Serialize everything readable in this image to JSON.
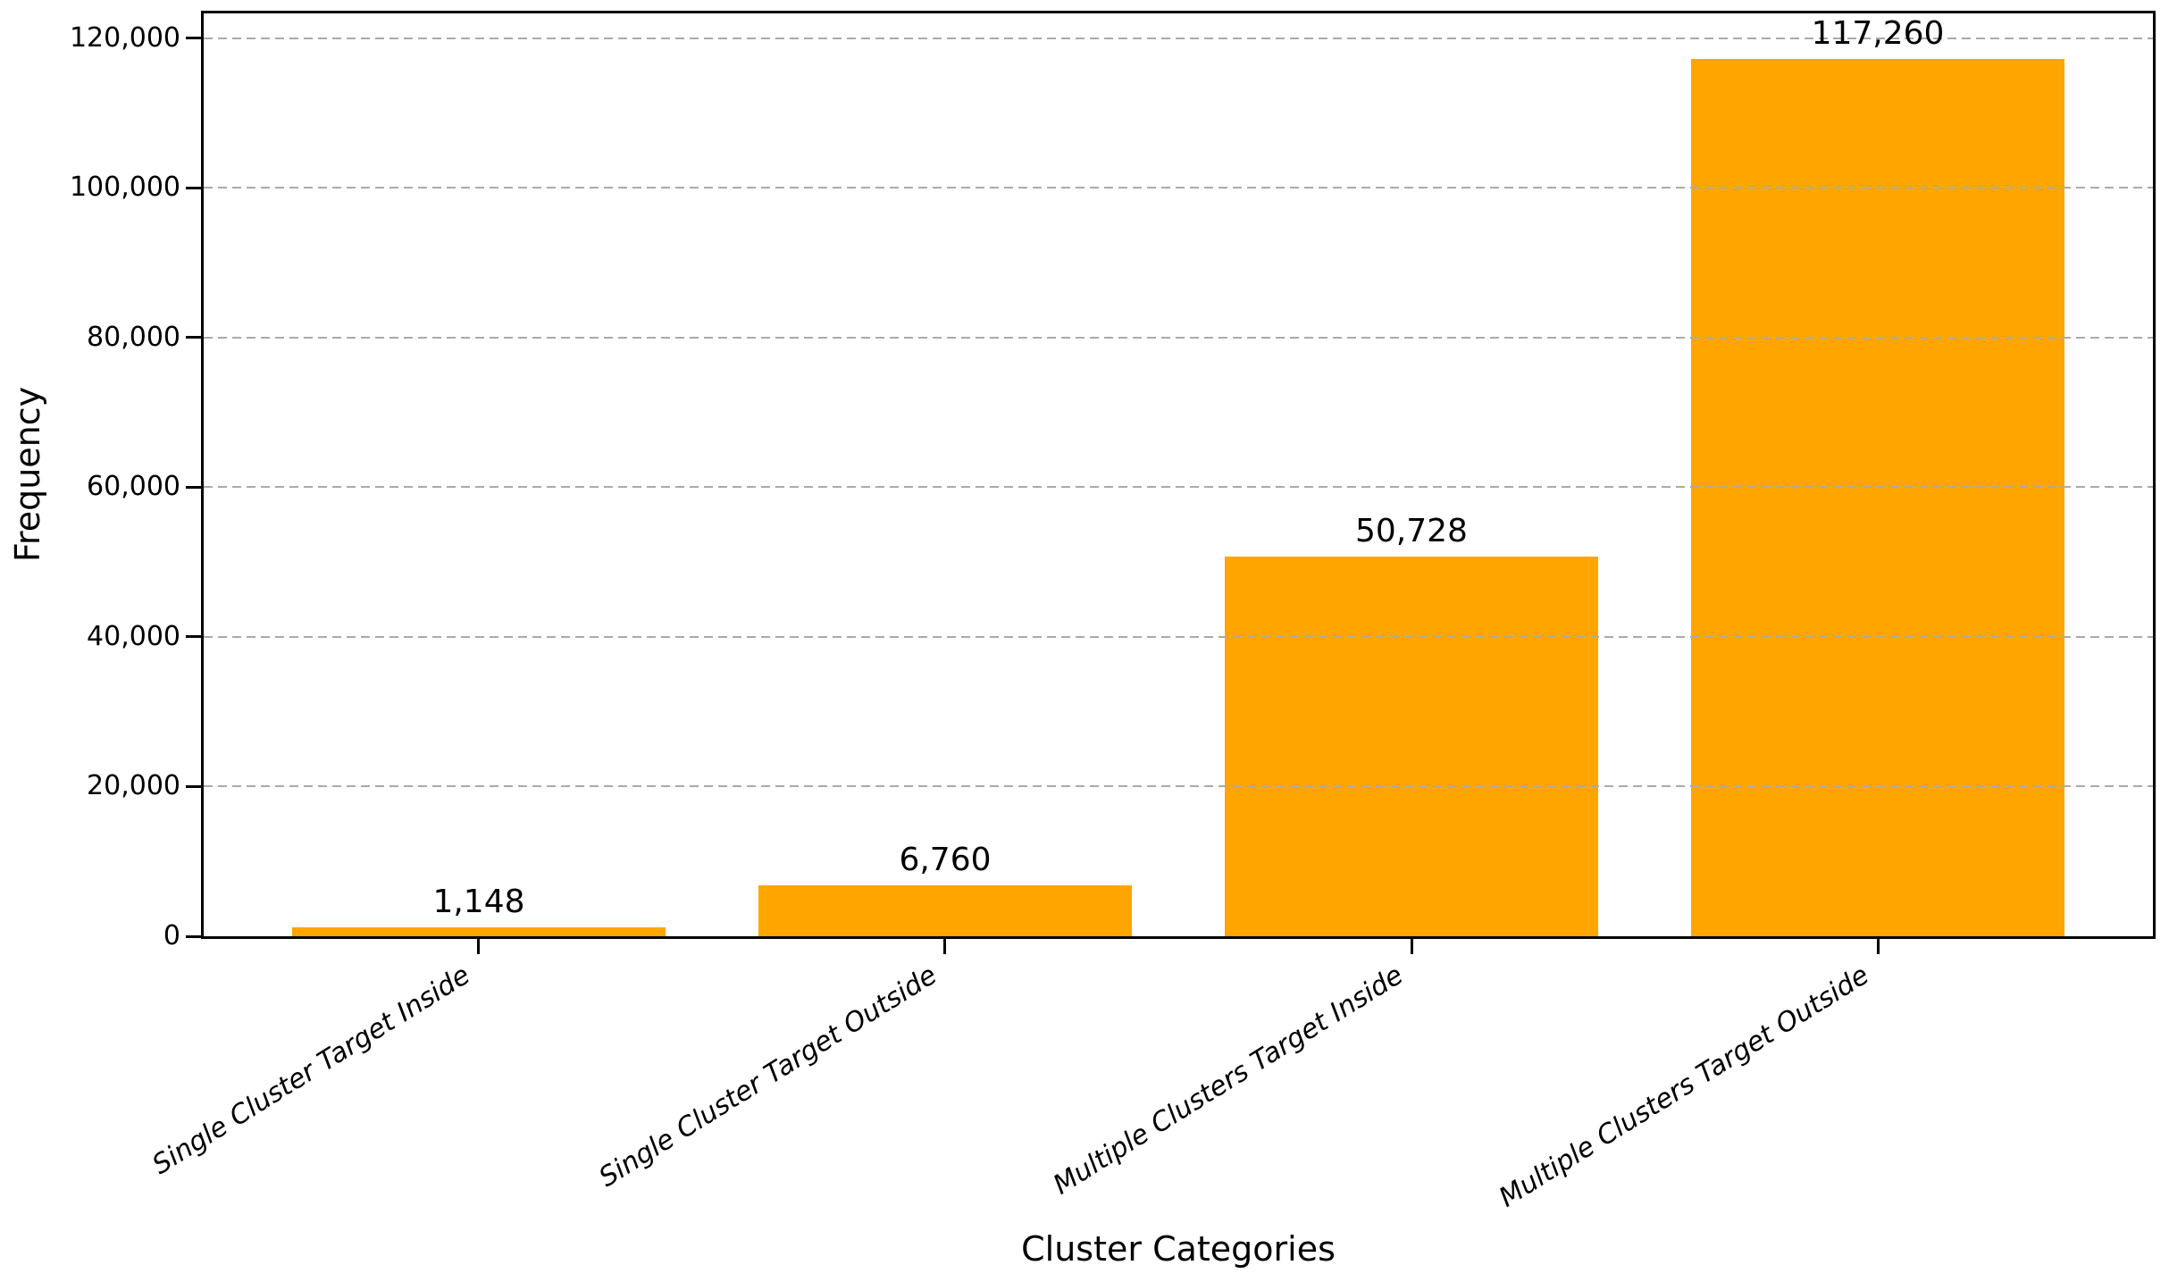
{
  "chart_data": {
    "type": "bar",
    "title": "",
    "xlabel": "Cluster Categories",
    "ylabel": "Frequency",
    "categories": [
      "Single Cluster Target Inside",
      "Single Cluster Target Outside",
      "Multiple Clusters Target Inside",
      "Multiple Clusters Target Outside"
    ],
    "values": [
      1148,
      6760,
      50728,
      117260
    ],
    "bar_labels": [
      "1,148",
      "6,760",
      "50,728",
      "117,260"
    ],
    "bar_color": "#FFA500",
    "ylim": [
      0,
      123320
    ],
    "yticks": [
      0,
      20000,
      40000,
      60000,
      80000,
      100000,
      120000
    ],
    "ytick_labels": [
      "0",
      "20,000",
      "40,000",
      "60,000",
      "80,000",
      "100,000",
      "120,000"
    ],
    "grid": {
      "axis": "y",
      "style": "dashed",
      "color": "#aaaaaa",
      "above_bars": true
    },
    "legend": null,
    "xtick_rotation_deg": 32,
    "xtick_style": "italic"
  }
}
